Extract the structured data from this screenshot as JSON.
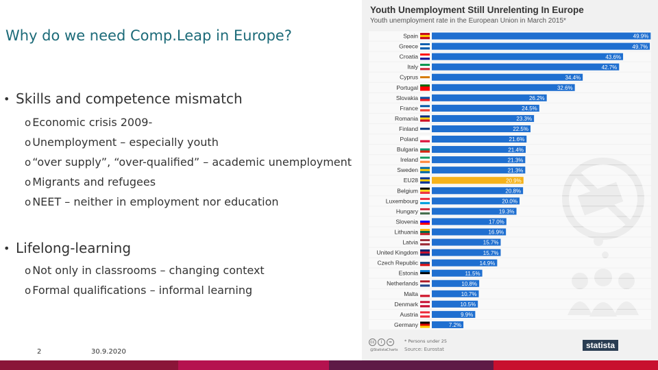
{
  "slide": {
    "title": "Why do we need Comp.Leap in Europe?",
    "bullet_char": "•",
    "sub_char": "o",
    "sections": [
      {
        "heading": "Skills and competence mismatch",
        "items": [
          "Economic crisis 2009-",
          "Unemployment – especially youth",
          "“over supply”, “over-qualified” – academic unemployment",
          "Migrants and refugees",
          "NEET – neither in employment nor education"
        ]
      },
      {
        "heading": "Lifelong-learning",
        "items": [
          "Not only in classrooms – changing context",
          "Formal qualifications – informal learning"
        ]
      }
    ],
    "footer": {
      "page": "2",
      "date": "30.9.2020"
    },
    "bottom_bar_colors": [
      "#8a1538",
      "#b5124f",
      "#5e1a46",
      "#c8102e"
    ]
  },
  "chart_data": {
    "type": "bar",
    "orientation": "horizontal",
    "title": "Youth Unemployment Still Unrelenting In Europe",
    "subtitle": "Youth unemployment rate in the European Union in March 2015*",
    "categories": [
      "Spain",
      "Greece",
      "Croatia",
      "Italy",
      "Cyprus",
      "Portugal",
      "Slovakia",
      "France",
      "Romania",
      "Finland",
      "Poland",
      "Bulgaria",
      "Ireland",
      "Sweden",
      "EU28",
      "Belgium",
      "Luxembourg",
      "Hungary",
      "Slovenia",
      "Lithuania",
      "Latvia",
      "United Kingdom",
      "Czech Republic",
      "Estonia",
      "Netherlands",
      "Malta",
      "Denmark",
      "Austria",
      "Germany"
    ],
    "values": [
      49.9,
      49.7,
      43.6,
      42.7,
      34.4,
      32.6,
      26.2,
      24.5,
      23.3,
      22.5,
      21.6,
      21.4,
      21.3,
      21.3,
      20.9,
      20.8,
      20.0,
      19.3,
      17.0,
      16.9,
      15.7,
      15.7,
      14.9,
      11.5,
      10.8,
      10.7,
      10.5,
      9.9,
      7.2
    ],
    "value_labels": [
      "49.9%",
      "49.7%",
      "43.6%",
      "42.7%",
      "34.4%",
      "32.6%",
      "26.2%",
      "24.5%",
      "23.3%",
      "22.5%",
      "21.6%",
      "21.4%",
      "21.3%",
      "21.3%",
      "20.9%",
      "20.8%",
      "20.0%",
      "19.3%",
      "17.0%",
      "16.9%",
      "15.7%",
      "15.7%",
      "14.9%",
      "11.5%",
      "10.8%",
      "10.7%",
      "10.5%",
      "9.9%",
      "7.2%"
    ],
    "highlight_category": "EU28",
    "xlim": [
      0,
      50
    ],
    "footnote": "* Persons under 25",
    "source": "Source: Eurostat",
    "handle": "@StatistaCharts",
    "brand": "statista",
    "colors": {
      "bar": "#1f6fd0",
      "highlight": "#f5b21a",
      "label_text": "#333333",
      "stripe": "#ffffff"
    },
    "flags": {
      "Spain": [
        "#c60b1e",
        "#ffc400",
        "#c60b1e"
      ],
      "Greece": [
        "#0d5eaf",
        "#ffffff",
        "#0d5eaf"
      ],
      "Croatia": [
        "#ff0000",
        "#ffffff",
        "#171796"
      ],
      "Italy": [
        "#009246",
        "#ffffff",
        "#ce2b37"
      ],
      "Cyprus": [
        "#ffffff",
        "#d57800",
        "#ffffff"
      ],
      "Portugal": [
        "#006600",
        "#ff0000",
        "#ff0000"
      ],
      "Slovakia": [
        "#ffffff",
        "#0b4ea2",
        "#ee1c25"
      ],
      "France": [
        "#0055a4",
        "#ffffff",
        "#ef4135"
      ],
      "Romania": [
        "#002b7f",
        "#fcd116",
        "#ce1126"
      ],
      "Finland": [
        "#ffffff",
        "#003580",
        "#ffffff"
      ],
      "Poland": [
        "#ffffff",
        "#ffffff",
        "#dc143c"
      ],
      "Bulgaria": [
        "#ffffff",
        "#00966e",
        "#d62612"
      ],
      "Ireland": [
        "#169b62",
        "#ffffff",
        "#ff883e"
      ],
      "Sweden": [
        "#006aa7",
        "#fecc00",
        "#006aa7"
      ],
      "EU28": [
        "#003399",
        "#ffcc00",
        "#003399"
      ],
      "Belgium": [
        "#000000",
        "#fdda24",
        "#ef3340"
      ],
      "Luxembourg": [
        "#ed2939",
        "#ffffff",
        "#00a1de"
      ],
      "Hungary": [
        "#ce2939",
        "#ffffff",
        "#477050"
      ],
      "Slovenia": [
        "#ffffff",
        "#0000ff",
        "#ff0000"
      ],
      "Lithuania": [
        "#fdb913",
        "#006a44",
        "#c1272d"
      ],
      "Latvia": [
        "#9e3039",
        "#ffffff",
        "#9e3039"
      ],
      "United Kingdom": [
        "#012169",
        "#c8102e",
        "#012169"
      ],
      "Czech Republic": [
        "#ffffff",
        "#11457e",
        "#d7141a"
      ],
      "Estonia": [
        "#0072ce",
        "#000000",
        "#ffffff"
      ],
      "Netherlands": [
        "#ae1c28",
        "#ffffff",
        "#21468b"
      ],
      "Malta": [
        "#ffffff",
        "#ffffff",
        "#cf142b"
      ],
      "Denmark": [
        "#c60c30",
        "#ffffff",
        "#c60c30"
      ],
      "Austria": [
        "#ed2939",
        "#ffffff",
        "#ed2939"
      ],
      "Germany": [
        "#000000",
        "#dd0000",
        "#ffce00"
      ]
    }
  }
}
